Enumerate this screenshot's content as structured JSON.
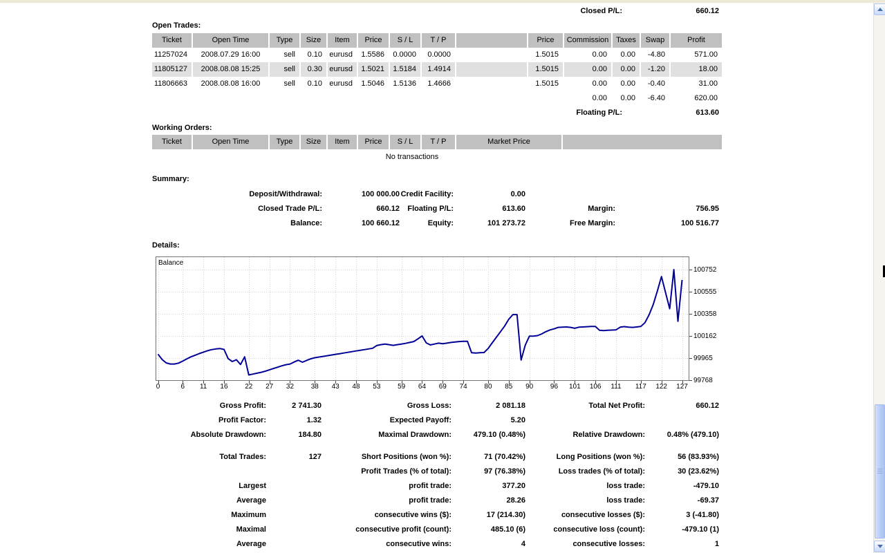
{
  "header": {
    "closed_pl_label": "Closed P/L:",
    "closed_pl_value": "660.12"
  },
  "open_trades": {
    "section_label": "Open Trades:",
    "columns": [
      "Ticket",
      "Open Time",
      "Type",
      "Size",
      "Item",
      "Price",
      "S / L",
      "T / P",
      "",
      "Price",
      "Commission",
      "Taxes",
      "Swap",
      "Profit"
    ],
    "rows": [
      {
        "ticket": "11257024",
        "open_time": "2008.07.29 16:00",
        "type": "sell",
        "size": "0.10",
        "item": "eurusd",
        "open_price": "1.5586",
        "sl": "0.0000",
        "tp": "0.0000",
        "price": "1.5015",
        "commission": "0.00",
        "taxes": "0.00",
        "swap": "-4.80",
        "profit": "571.00"
      },
      {
        "ticket": "11805127",
        "open_time": "2008.08.08 15:25",
        "type": "sell",
        "size": "0.30",
        "item": "eurusd",
        "open_price": "1.5021",
        "sl": "1.5184",
        "tp": "1.4914",
        "price": "1.5015",
        "commission": "0.00",
        "taxes": "0.00",
        "swap": "-1.20",
        "profit": "18.00"
      },
      {
        "ticket": "11806663",
        "open_time": "2008.08.08 16:00",
        "type": "sell",
        "size": "0.10",
        "item": "eurusd",
        "open_price": "1.5046",
        "sl": "1.5136",
        "tp": "1.4666",
        "price": "1.5015",
        "commission": "0.00",
        "taxes": "0.00",
        "swap": "-0.40",
        "profit": "31.00"
      }
    ],
    "totals": {
      "commission": "0.00",
      "taxes": "0.00",
      "swap": "-6.40",
      "profit": "620.00"
    },
    "floating_pl_label": "Floating P/L:",
    "floating_pl_value": "613.60"
  },
  "working_orders": {
    "section_label": "Working Orders:",
    "columns": [
      "Ticket",
      "Open Time",
      "Type",
      "Size",
      "Item",
      "Price",
      "S / L",
      "T / P",
      "Market Price",
      ""
    ],
    "empty_text": "No transactions"
  },
  "summary": {
    "section_label": "Summary:",
    "rows": [
      [
        {
          "l": "Deposit/Withdrawal:",
          "v": "100 000.00"
        },
        {
          "l": "Credit Facility:",
          "v": "0.00"
        },
        null
      ],
      [
        {
          "l": "Closed Trade P/L:",
          "v": "660.12"
        },
        {
          "l": "Floating P/L:",
          "v": "613.60"
        },
        {
          "l": "Margin:",
          "v": "756.95"
        }
      ],
      [
        {
          "l": "Balance:",
          "v": "100 660.12"
        },
        {
          "l": "Equity:",
          "v": "101 273.72"
        },
        {
          "l": "Free Margin:",
          "v": "100 516.77"
        }
      ]
    ]
  },
  "details": {
    "section_label": "Details:"
  },
  "stats": {
    "rows": [
      {
        "l1": "Gross Profit:",
        "v1": "2 741.30",
        "l2": "Gross Loss:",
        "v2": "2 081.18",
        "l3": "Total Net Profit:",
        "v3": "660.12"
      },
      {
        "l1": "Profit Factor:",
        "v1": "1.32",
        "l2": "Expected Payoff:",
        "v2": "5.20",
        "l3": "",
        "v3": ""
      },
      {
        "l1": "Absolute Drawdown:",
        "v1": "184.80",
        "l2": "Maximal Drawdown:",
        "v2": "479.10 (0.48%)",
        "l3": "Relative Drawdown:",
        "v3": "0.48% (479.10)"
      },
      {
        "l1": "Total Trades:",
        "v1": "127",
        "l2": "Short Positions (won %):",
        "v2": "71 (70.42%)",
        "l3": "Long Positions (won %):",
        "v3": "56 (83.93%)"
      },
      {
        "l1": "",
        "v1": "",
        "l2": "Profit Trades (% of total):",
        "v2": "97 (76.38%)",
        "l3": "Loss trades (% of total):",
        "v3": "30 (23.62%)"
      },
      {
        "l1": "Largest",
        "v1": "",
        "l2": "profit trade:",
        "v2": "377.20",
        "l3": "loss trade:",
        "v3": "-479.10"
      },
      {
        "l1": "Average",
        "v1": "",
        "l2": "profit trade:",
        "v2": "28.26",
        "l3": "loss trade:",
        "v3": "-69.37"
      },
      {
        "l1": "Maximum",
        "v1": "",
        "l2": "consecutive wins ($):",
        "v2": "17 (214.30)",
        "l3": "consecutive losses ($):",
        "v3": "3 (-41.80)"
      },
      {
        "l1": "Maximal",
        "v1": "",
        "l2": "consecutive profit (count):",
        "v2": "485.10 (6)",
        "l3": "consecutive loss (count):",
        "v3": "-479.10 (1)"
      },
      {
        "l1": "Average",
        "v1": "",
        "l2": "consecutive wins:",
        "v2": "4",
        "l3": "consecutive losses:",
        "v3": "1"
      }
    ]
  },
  "chart_data": {
    "type": "line",
    "title": "Balance",
    "xlabel": "",
    "ylabel": "",
    "x_ticks": [
      0,
      6,
      11,
      16,
      22,
      27,
      32,
      38,
      43,
      48,
      53,
      59,
      64,
      69,
      74,
      80,
      85,
      90,
      96,
      101,
      106,
      111,
      117,
      122,
      127
    ],
    "y_ticks": [
      100752,
      100555,
      100358,
      100162,
      99965,
      99768
    ],
    "ylim": [
      99762,
      100869
    ],
    "xlim": [
      0,
      127
    ],
    "grid": "dashed",
    "legend_position": "top-left-inside",
    "line_color": "#000096",
    "series": [
      {
        "name": "Balance",
        "values": [
          100000,
          99952,
          99922,
          99912,
          99912,
          99920,
          99938,
          99958,
          99976,
          99990,
          100005,
          100018,
          100030,
          100040,
          100046,
          100050,
          100042,
          99960,
          99934,
          99950,
          99908,
          99976,
          99815,
          99822,
          99830,
          99838,
          99848,
          99860,
          99872,
          99884,
          99896,
          99906,
          99912,
          99930,
          99946,
          99928,
          99944,
          99958,
          99968,
          99974,
          99980,
          99986,
          99992,
          99998,
          100004,
          100010,
          100016,
          100022,
          100028,
          100034,
          100040,
          100046,
          100052,
          100076,
          100084,
          100090,
          100084,
          100078,
          100084,
          100090,
          100096,
          100104,
          100112,
          100136,
          100162,
          100100,
          100082,
          100090,
          100098,
          100092,
          100098,
          100104,
          100108,
          100112,
          100114,
          100114,
          100012,
          100010,
          100012,
          100014,
          100050,
          100100,
          100150,
          100200,
          100250,
          100310,
          100352,
          100352,
          99948,
          100080,
          100160,
          100160,
          100165,
          100180,
          100200,
          100215,
          100225,
          100238,
          100240,
          100242,
          100238,
          100230,
          100240,
          100242,
          100244,
          100246,
          100246,
          100212,
          100210,
          100212,
          100214,
          100216,
          100240,
          100245,
          100240,
          100238,
          100242,
          100246,
          100280,
          100350,
          100440,
          100560,
          100690,
          100548,
          100404,
          100752,
          100292,
          100660
        ]
      }
    ]
  },
  "colors": {
    "table_header_bg": "#c0c0c0",
    "alt_row_bg": "#e0e0e0",
    "balance_line": "#000096",
    "top_band": "#ece9d8"
  }
}
